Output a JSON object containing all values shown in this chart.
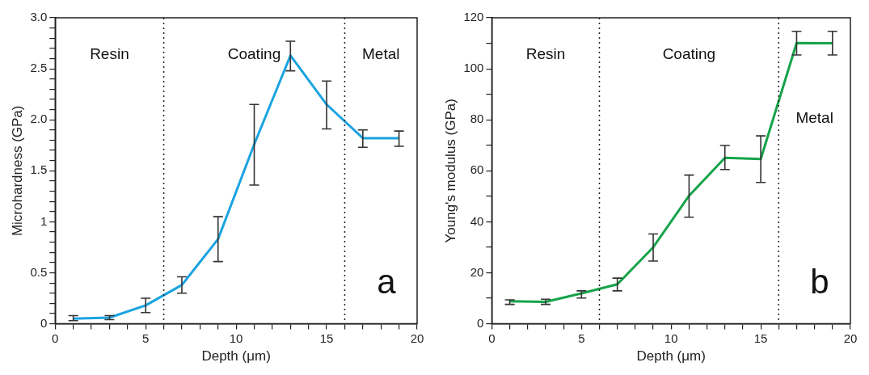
{
  "chart_data": [
    {
      "type": "line",
      "xlabel": "Depth (μm)",
      "ylabel": "Microhardness (GPa)",
      "x": [
        1,
        3,
        5,
        7,
        9,
        11,
        13,
        15,
        17,
        19
      ],
      "series": [
        {
          "color": "#1aa3e0",
          "values": [
            0.05,
            0.06,
            0.18,
            0.38,
            0.83,
            1.76,
            2.63,
            2.15,
            1.82,
            1.82
          ],
          "errors": [
            [
              0.03,
              0.08
            ],
            [
              0.04,
              0.08
            ],
            [
              0.11,
              0.25
            ],
            [
              0.3,
              0.46
            ],
            [
              0.61,
              1.05
            ],
            [
              1.36,
              2.15
            ],
            [
              2.48,
              2.77
            ],
            [
              1.91,
              2.38
            ],
            [
              1.73,
              1.9
            ],
            [
              1.74,
              1.89
            ]
          ]
        }
      ],
      "xlim": [
        0,
        20
      ],
      "ylim": [
        0,
        3
      ],
      "xticks": [
        0,
        {
          "value": 1,
          "label": null
        },
        {
          "value": 2,
          "label": null
        },
        {
          "value": 3,
          "label": null
        },
        {
          "value": 4,
          "label": null
        },
        5,
        {
          "value": 6,
          "label": null
        },
        {
          "value": 7,
          "label": null
        },
        {
          "value": 8,
          "label": null
        },
        {
          "value": 9,
          "label": null
        },
        10,
        {
          "value": 11,
          "label": null
        },
        {
          "value": 12,
          "label": null
        },
        {
          "value": 13,
          "label": null
        },
        {
          "value": 14,
          "label": null
        },
        15,
        {
          "value": 16,
          "label": null
        },
        {
          "value": 17,
          "label": null
        },
        {
          "value": 18,
          "label": null
        },
        {
          "value": 19,
          "label": null
        },
        20
      ],
      "yticks": [
        0,
        {
          "value": 0.1,
          "label": null
        },
        {
          "value": 0.2,
          "label": null
        },
        {
          "value": 0.3,
          "label": null
        },
        {
          "value": 0.4,
          "label": null
        },
        0.5,
        {
          "value": 0.6,
          "label": null
        },
        {
          "value": 0.7,
          "label": null
        },
        {
          "value": 0.8,
          "label": null
        },
        {
          "value": 0.9,
          "label": null
        },
        1,
        {
          "value": 1.1,
          "label": null
        },
        {
          "value": 1.2,
          "label": null
        },
        {
          "value": 1.3,
          "label": null
        },
        {
          "value": 1.4,
          "label": null
        },
        1.5,
        {
          "value": 1.6,
          "label": null
        },
        {
          "value": 1.7,
          "label": null
        },
        {
          "value": 1.8,
          "label": null
        },
        {
          "value": 1.9,
          "label": null
        },
        {
          "value": 2,
          "label": "2.0"
        },
        {
          "value": 2.1,
          "label": null
        },
        {
          "value": 2.2,
          "label": null
        },
        {
          "value": 2.3,
          "label": null
        },
        {
          "value": 2.4,
          "label": null
        },
        {
          "value": 2.5,
          "label": "2.5"
        },
        {
          "value": 2.6,
          "label": null
        },
        {
          "value": 2.7,
          "label": null
        },
        {
          "value": 2.8,
          "label": null
        },
        {
          "value": 2.9,
          "label": null
        },
        {
          "value": 3,
          "label": "3.0"
        }
      ],
      "ref_lines": [
        {
          "axis": "x",
          "value": 6,
          "line_style": "dotted"
        },
        {
          "axis": "x",
          "value": 16,
          "line_style": "dotted"
        }
      ],
      "annotations": [
        "Resin",
        "Coating",
        "Metal",
        "a"
      ],
      "grid": false,
      "legend": false
    },
    {
      "type": "line",
      "xlabel": "Depth (μm)",
      "ylabel": "Young's modulus (GPa)",
      "x": [
        1,
        3,
        5,
        7,
        9,
        11,
        13,
        15,
        17,
        19
      ],
      "series": [
        {
          "color": "#16a34a",
          "values": [
            8.8,
            8.6,
            11.9,
            15.5,
            30,
            50.2,
            65.1,
            64.6,
            110.1,
            110
          ],
          "errors": [
            [
              7.6,
              9.4
            ],
            [
              7.6,
              9.6
            ],
            [
              10.1,
              12.9
            ],
            [
              12.9,
              17.9
            ],
            [
              24.6,
              35.2
            ],
            [
              41.8,
              58.3
            ],
            [
              60.5,
              69.9
            ],
            [
              55.4,
              73.7
            ],
            [
              105.4,
              114.7
            ],
            [
              105.4,
              114.7
            ]
          ]
        }
      ],
      "xlim": [
        0,
        20
      ],
      "ylim": [
        0,
        120
      ],
      "xticks": [
        0,
        {
          "value": 1,
          "label": null
        },
        {
          "value": 2,
          "label": null
        },
        {
          "value": 3,
          "label": null
        },
        {
          "value": 4,
          "label": null
        },
        5,
        {
          "value": 6,
          "label": null
        },
        {
          "value": 7,
          "label": null
        },
        {
          "value": 8,
          "label": null
        },
        {
          "value": 9,
          "label": null
        },
        10,
        {
          "value": 11,
          "label": null
        },
        {
          "value": 12,
          "label": null
        },
        {
          "value": 13,
          "label": null
        },
        {
          "value": 14,
          "label": null
        },
        15,
        {
          "value": 16,
          "label": null
        },
        {
          "value": 17,
          "label": null
        },
        {
          "value": 18,
          "label": null
        },
        {
          "value": 19,
          "label": null
        },
        20
      ],
      "yticks": [
        0,
        {
          "value": 10,
          "label": null
        },
        20,
        {
          "value": 30,
          "label": null
        },
        40,
        {
          "value": 50,
          "label": null
        },
        60,
        {
          "value": 70,
          "label": null
        },
        80,
        {
          "value": 90,
          "label": null
        },
        100,
        {
          "value": 110,
          "label": null
        },
        120
      ],
      "ref_lines": [
        {
          "axis": "x",
          "value": 6,
          "line_style": "dotted"
        },
        {
          "axis": "x",
          "value": 16,
          "line_style": "dotted"
        }
      ],
      "annotations": [
        "Resin",
        "Coating",
        "Metal",
        "b"
      ],
      "grid": false,
      "legend": false
    }
  ]
}
